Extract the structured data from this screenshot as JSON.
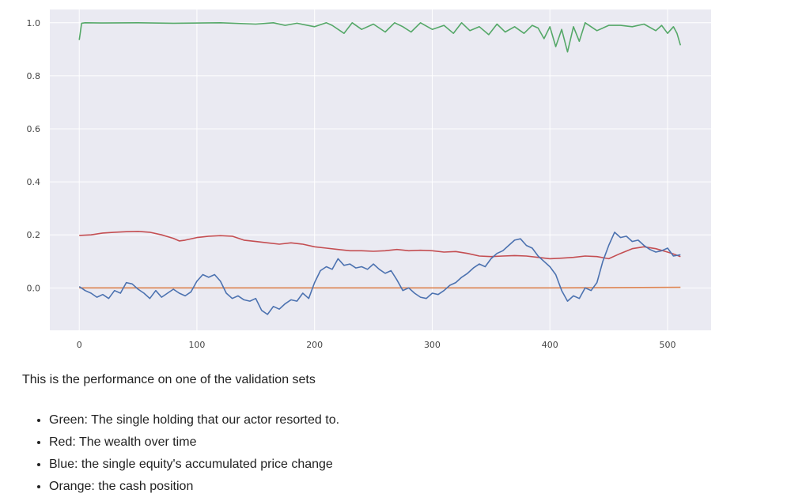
{
  "chart_data": {
    "type": "line",
    "xlim": [
      -25,
      537
    ],
    "ylim": [
      -0.16,
      1.05
    ],
    "x_ticks": [
      "0",
      "100",
      "200",
      "300",
      "400",
      "500"
    ],
    "y_ticks": [
      "0.0",
      "0.2",
      "0.4",
      "0.6",
      "0.8",
      "1.0"
    ],
    "grid": true,
    "colors": {
      "background": "#eaeaf2",
      "grid": "#ffffff",
      "green": "#55a868",
      "red": "#c44e52",
      "blue": "#4c72b0",
      "orange": "#dd8452"
    },
    "series": [
      {
        "color": "green",
        "x": [
          0,
          2,
          5,
          20,
          50,
          80,
          120,
          150,
          165,
          175,
          185,
          200,
          210,
          215,
          225,
          232,
          240,
          250,
          260,
          268,
          275,
          282,
          290,
          300,
          310,
          318,
          325,
          332,
          340,
          348,
          355,
          362,
          370,
          378,
          385,
          390,
          395,
          400,
          405,
          410,
          415,
          420,
          425,
          430,
          440,
          450,
          460,
          470,
          480,
          490,
          495,
          500,
          505,
          508,
          511
        ],
        "values": [
          0.935,
          0.998,
          1.0,
          0.999,
          1.0,
          0.998,
          1.0,
          0.995,
          1.0,
          0.99,
          0.998,
          0.985,
          1.0,
          0.99,
          0.96,
          1.0,
          0.975,
          0.995,
          0.965,
          1.0,
          0.985,
          0.965,
          1.0,
          0.975,
          0.99,
          0.96,
          1.0,
          0.97,
          0.985,
          0.955,
          0.995,
          0.965,
          0.985,
          0.96,
          0.99,
          0.98,
          0.94,
          0.985,
          0.91,
          0.975,
          0.89,
          0.985,
          0.93,
          1.0,
          0.97,
          0.99,
          0.99,
          0.985,
          0.995,
          0.97,
          0.99,
          0.96,
          0.985,
          0.96,
          0.915
        ]
      },
      {
        "color": "red",
        "x": [
          0,
          10,
          20,
          30,
          40,
          50,
          60,
          70,
          80,
          85,
          90,
          100,
          110,
          120,
          130,
          140,
          150,
          160,
          170,
          180,
          190,
          200,
          210,
          220,
          230,
          240,
          250,
          260,
          270,
          280,
          290,
          300,
          310,
          320,
          330,
          340,
          350,
          360,
          370,
          380,
          390,
          400,
          410,
          420,
          430,
          440,
          450,
          460,
          470,
          480,
          490,
          500,
          505,
          511
        ],
        "values": [
          0.198,
          0.2,
          0.207,
          0.21,
          0.212,
          0.213,
          0.21,
          0.2,
          0.187,
          0.177,
          0.18,
          0.19,
          0.195,
          0.197,
          0.195,
          0.18,
          0.175,
          0.17,
          0.165,
          0.17,
          0.165,
          0.155,
          0.15,
          0.145,
          0.14,
          0.14,
          0.138,
          0.14,
          0.145,
          0.14,
          0.142,
          0.14,
          0.135,
          0.137,
          0.13,
          0.12,
          0.118,
          0.12,
          0.122,
          0.12,
          0.115,
          0.11,
          0.112,
          0.115,
          0.12,
          0.118,
          0.11,
          0.13,
          0.148,
          0.155,
          0.148,
          0.135,
          0.128,
          0.118
        ]
      },
      {
        "color": "blue",
        "x": [
          0,
          5,
          10,
          15,
          20,
          25,
          30,
          35,
          40,
          45,
          50,
          55,
          60,
          65,
          70,
          75,
          80,
          85,
          90,
          95,
          100,
          105,
          110,
          115,
          120,
          125,
          130,
          135,
          140,
          145,
          150,
          155,
          160,
          165,
          170,
          175,
          180,
          185,
          190,
          195,
          200,
          205,
          210,
          215,
          220,
          225,
          230,
          235,
          240,
          245,
          250,
          255,
          260,
          265,
          270,
          275,
          280,
          285,
          290,
          295,
          300,
          305,
          310,
          315,
          320,
          325,
          330,
          335,
          340,
          345,
          350,
          355,
          360,
          365,
          370,
          375,
          380,
          385,
          390,
          395,
          400,
          405,
          410,
          415,
          420,
          425,
          430,
          435,
          440,
          445,
          450,
          455,
          460,
          465,
          470,
          475,
          480,
          485,
          490,
          495,
          500,
          505,
          511
        ],
        "values": [
          0.005,
          -0.01,
          -0.02,
          -0.035,
          -0.025,
          -0.04,
          -0.01,
          -0.02,
          0.02,
          0.015,
          -0.005,
          -0.02,
          -0.04,
          -0.01,
          -0.035,
          -0.02,
          -0.005,
          -0.02,
          -0.03,
          -0.015,
          0.025,
          0.05,
          0.04,
          0.05,
          0.025,
          -0.02,
          -0.04,
          -0.03,
          -0.045,
          -0.05,
          -0.04,
          -0.085,
          -0.1,
          -0.07,
          -0.08,
          -0.06,
          -0.045,
          -0.05,
          -0.02,
          -0.04,
          0.02,
          0.065,
          0.08,
          0.07,
          0.11,
          0.085,
          0.09,
          0.075,
          0.08,
          0.07,
          0.09,
          0.07,
          0.055,
          0.065,
          0.03,
          -0.01,
          0.0,
          -0.02,
          -0.035,
          -0.04,
          -0.02,
          -0.025,
          -0.01,
          0.01,
          0.02,
          0.04,
          0.055,
          0.075,
          0.09,
          0.08,
          0.11,
          0.13,
          0.14,
          0.16,
          0.18,
          0.185,
          0.16,
          0.15,
          0.12,
          0.1,
          0.08,
          0.05,
          -0.01,
          -0.05,
          -0.03,
          -0.04,
          0.0,
          -0.01,
          0.02,
          0.1,
          0.16,
          0.21,
          0.19,
          0.195,
          0.175,
          0.18,
          0.16,
          0.145,
          0.135,
          0.14,
          0.15,
          0.12,
          0.125
        ]
      },
      {
        "color": "orange",
        "x": [
          0,
          100,
          200,
          300,
          400,
          511
        ],
        "values": [
          0.0,
          0.0,
          0.0,
          0.0,
          0.0,
          0.002
        ]
      }
    ]
  },
  "caption": "This is the performance on one of the validation sets",
  "legend": [
    "Green: The single holding that our actor resorted to.",
    "Red: The wealth over time",
    "Blue: the single equity's accumulated price change",
    "Orange: the cash position"
  ]
}
